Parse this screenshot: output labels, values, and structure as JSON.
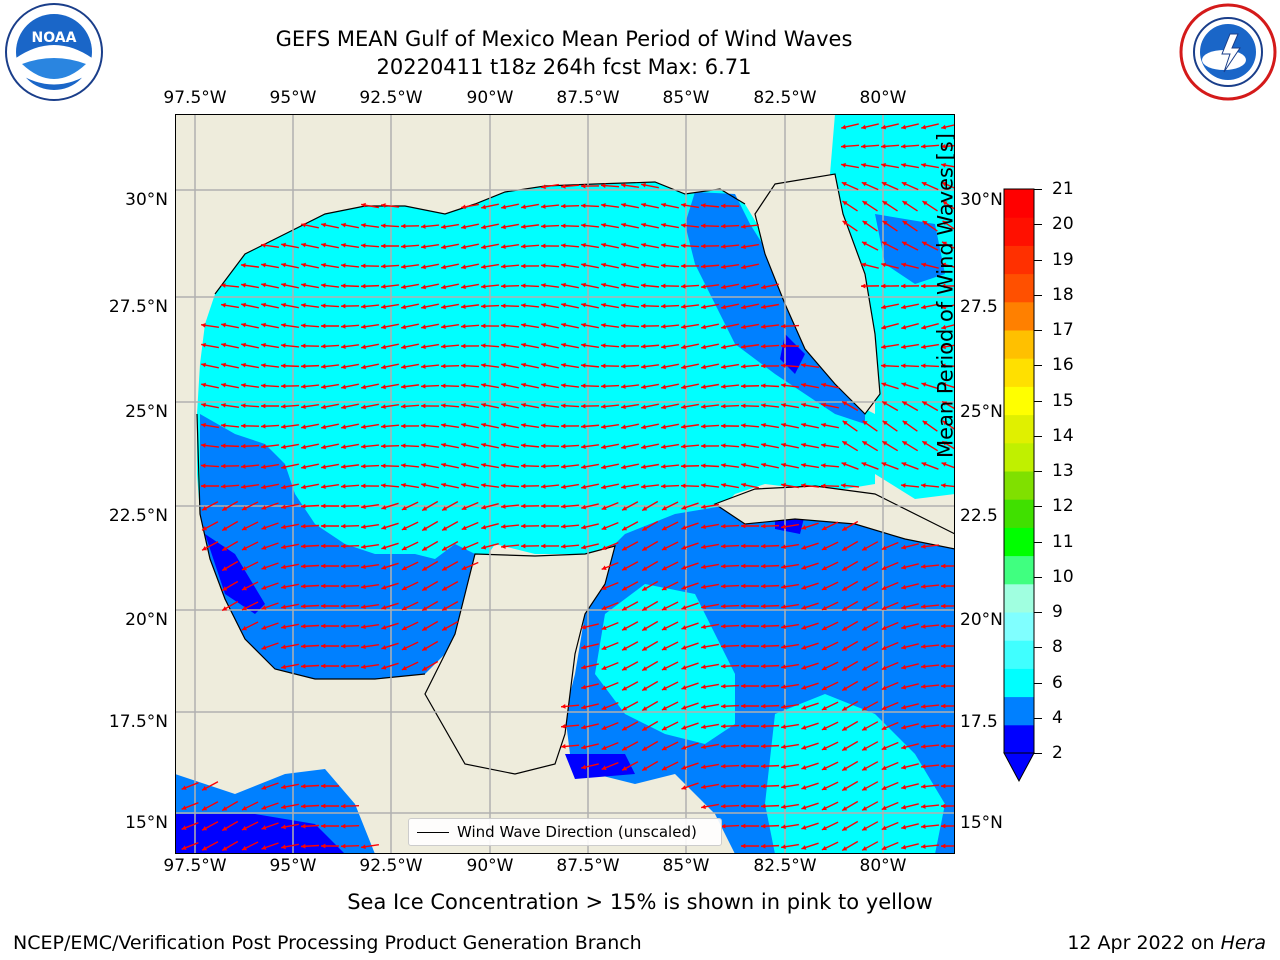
{
  "title_line1": "GEFS MEAN Gulf of Mexico Mean Period of Wind Waves",
  "title_line2": "20220411 t18z 264h fcst   Max: 6.71",
  "logos": {
    "left": "noaa-logo",
    "right": "nws-logo"
  },
  "map": {
    "lon_ticks": [
      "97.5°W",
      "95°W",
      "92.5°W",
      "90°W",
      "87.5°W",
      "85°W",
      "82.5°W",
      "80°W"
    ],
    "lat_ticks": [
      "30°N",
      "27.5°N",
      "25°N",
      "22.5°N",
      "20°N",
      "17.5°N",
      "15°N"
    ],
    "lat_ticks_right": [
      "30°N",
      "27.5",
      "25°N",
      "22.5",
      "20°N",
      "17.5",
      "15°N"
    ],
    "legend_label": "Wind Wave Direction (unscaled)",
    "colors": {
      "land": "#eeecdc",
      "ocean_low": "#0080ff",
      "ocean_mid": "#00ffff",
      "ocean_deep": "#0000ff",
      "arrows": "#ff0000",
      "grid": "#b0b0b0"
    }
  },
  "colorbar": {
    "label": "Mean Period of Wind Waves [s]",
    "ticks": [
      "21",
      "20",
      "19",
      "18",
      "17",
      "16",
      "15",
      "14",
      "13",
      "12",
      "11",
      "10",
      "9",
      "8",
      "6",
      "4",
      "2"
    ],
    "colors": [
      "#0000ff",
      "#0080ff",
      "#00ffff",
      "#40ffff",
      "#80ffff",
      "#a0ffe0",
      "#40ff80",
      "#00ff00",
      "#40e000",
      "#80e000",
      "#c0f000",
      "#e0f000",
      "#ffff00",
      "#ffe000",
      "#ffc000",
      "#ff8000",
      "#ff5000",
      "#ff3000",
      "#ff1000",
      "#ff0000"
    ]
  },
  "sea_ice_note": "Sea Ice Concentration > 15% is shown in pink to yellow",
  "footer_left": "NCEP/EMC/Verification Post Processing Product Generation Branch",
  "footer_right_prefix": "12 Apr 2022 on ",
  "footer_right_host": "Hera"
}
